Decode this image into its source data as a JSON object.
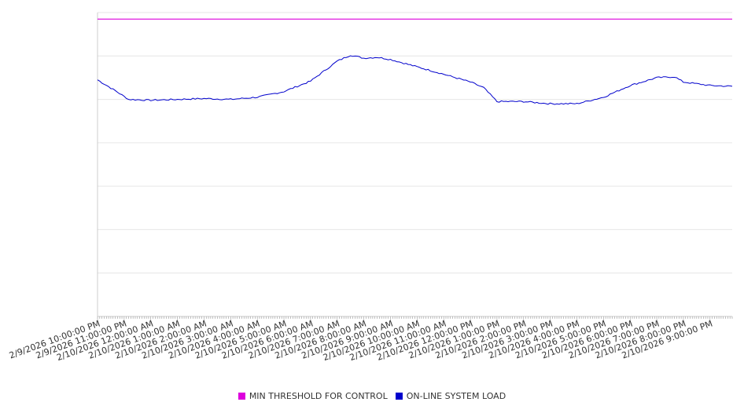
{
  "chart_data": {
    "type": "line",
    "x_start": "2/9/2026 10:00:00 PM",
    "x_end": "2/10/2026 9:50:00 PM",
    "x_step": "5 min",
    "x_ticks": [
      "2/9/2026 10:00:00 PM",
      "2/9/2026 11:00:00 PM",
      "2/10/2026 12:00:00 AM",
      "2/10/2026 1:00:00 AM",
      "2/10/2026 2:00:00 AM",
      "2/10/2026 3:00:00 AM",
      "2/10/2026 4:00:00 AM",
      "2/10/2026 5:00:00 AM",
      "2/10/2026 6:00:00 AM",
      "2/10/2026 7:00:00 AM",
      "2/10/2026 8:00:00 AM",
      "2/10/2026 9:00:00 AM",
      "2/10/2026 10:00:00 AM",
      "2/10/2026 11:00:00 AM",
      "2/10/2026 12:00:00 PM",
      "2/10/2026 1:00:00 PM",
      "2/10/2026 2:00:00 PM",
      "2/10/2026 3:00:00 PM",
      "2/10/2026 4:00:00 PM",
      "2/10/2026 5:00:00 PM",
      "2/10/2026 6:00:00 PM",
      "2/10/2026 7:00:00 PM",
      "2/10/2026 8:00:00 PM",
      "2/10/2026 9:00:00 PM"
    ],
    "ylim": [
      0,
      7
    ],
    "grid": true,
    "y_tick_labels_visible": false,
    "legend_position": "bottom",
    "series": [
      {
        "name": "MIN THRESHOLD FOR CONTROL",
        "color": "#dd00dd",
        "constant": 6.85
      },
      {
        "name": "ON-LINE SYSTEM LOAD",
        "color": "#0000cc",
        "keypoints": [
          [
            "2/9/2026 10:00:00 PM",
            5.45
          ],
          [
            "2/9/2026 10:40:00 PM",
            5.2
          ],
          [
            "2/9/2026 11:10:00 PM",
            5.0
          ],
          [
            "2/10/2026 12:00:00 AM",
            4.98
          ],
          [
            "2/10/2026 2:00:00 AM",
            5.02
          ],
          [
            "2/10/2026 3:00:00 AM",
            5.0
          ],
          [
            "2/10/2026 4:00:00 AM",
            5.05
          ],
          [
            "2/10/2026 5:00:00 AM",
            5.18
          ],
          [
            "2/10/2026 6:00:00 AM",
            5.42
          ],
          [
            "2/10/2026 7:00:00 AM",
            5.88
          ],
          [
            "2/10/2026 7:30:00 AM",
            6.02
          ],
          [
            "2/10/2026 8:00:00 AM",
            5.95
          ],
          [
            "2/10/2026 8:30:00 AM",
            5.97
          ],
          [
            "2/10/2026 9:00:00 AM",
            5.92
          ],
          [
            "2/10/2026 10:00:00 AM",
            5.75
          ],
          [
            "2/10/2026 11:00:00 AM",
            5.58
          ],
          [
            "2/10/2026 12:00:00 PM",
            5.4
          ],
          [
            "2/10/2026 12:30:00 PM",
            5.27
          ],
          [
            "2/10/2026 1:00:00 PM",
            4.95
          ],
          [
            "2/10/2026 2:00:00 PM",
            4.95
          ],
          [
            "2/10/2026 3:00:00 PM",
            4.9
          ],
          [
            "2/10/2026 4:00:00 PM",
            4.9
          ],
          [
            "2/10/2026 5:00:00 PM",
            5.05
          ],
          [
            "2/10/2026 6:00:00 PM",
            5.32
          ],
          [
            "2/10/2026 7:00:00 PM",
            5.5
          ],
          [
            "2/10/2026 7:40:00 PM",
            5.52
          ],
          [
            "2/10/2026 8:00:00 PM",
            5.4
          ],
          [
            "2/10/2026 9:00:00 PM",
            5.32
          ],
          [
            "2/10/2026 9:50:00 PM",
            5.3
          ]
        ]
      }
    ]
  }
}
